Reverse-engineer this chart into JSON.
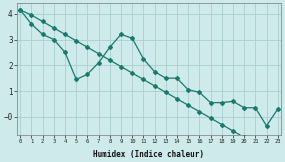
{
  "xlabel": "Humidex (Indice chaleur)",
  "bg_color": "#ceeaea",
  "grid_color": "#aacece",
  "line_color": "#1a7a6e",
  "line1_x": [
    0,
    1,
    2,
    3,
    4,
    5,
    6,
    7,
    8,
    9,
    10,
    11,
    12,
    13,
    14,
    15,
    16,
    17,
    18,
    19,
    20,
    21,
    22,
    23
  ],
  "line1_y": [
    4.15,
    3.6,
    3.2,
    3.0,
    2.5,
    1.45,
    1.65,
    2.1,
    2.7,
    3.2,
    3.05,
    2.25,
    1.75,
    1.5,
    1.5,
    1.05,
    0.95,
    0.55,
    0.55,
    0.6,
    0.35,
    0.35,
    -0.35,
    0.3
  ],
  "line2_x": [
    0,
    1,
    2,
    3,
    4,
    5,
    6,
    7,
    8,
    9,
    10,
    11,
    12,
    13,
    14,
    15,
    16,
    17,
    18,
    19,
    20,
    21,
    22,
    23
  ],
  "line2_y": [
    4.15,
    3.95,
    3.7,
    3.45,
    3.2,
    2.95,
    2.7,
    2.45,
    2.2,
    1.95,
    1.7,
    1.45,
    1.2,
    0.95,
    0.7,
    0.45,
    0.2,
    -0.05,
    -0.3,
    -0.55,
    -0.8,
    -1.05,
    -1.3,
    -1.55
  ],
  "xlim": [
    0,
    23
  ],
  "ylim": [
    -0.7,
    4.4
  ],
  "xticks": [
    0,
    1,
    2,
    3,
    4,
    5,
    6,
    7,
    8,
    9,
    10,
    11,
    12,
    13,
    14,
    15,
    16,
    17,
    18,
    19,
    20,
    21,
    22,
    23
  ],
  "yticks": [
    0,
    1,
    2,
    3,
    4
  ],
  "ytick_labels": [
    "−0",
    "1",
    "2",
    "3",
    "4"
  ]
}
